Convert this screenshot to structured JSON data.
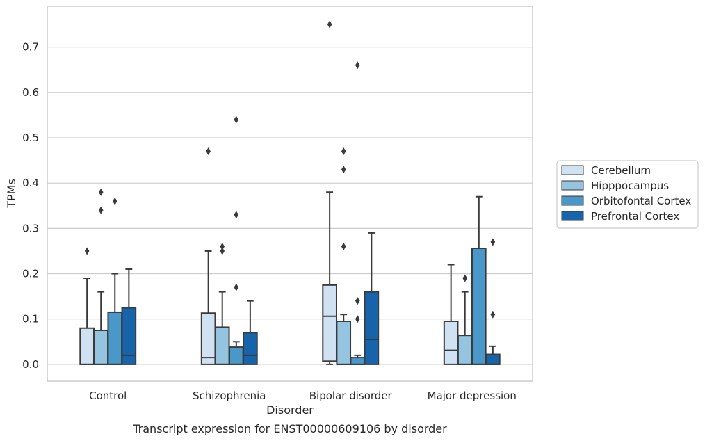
{
  "chart_data": {
    "type": "box",
    "caption": "Transcript expression for ENST00000609106 by disorder",
    "xlabel": "Disorder",
    "ylabel": "TPMs",
    "ylim": [
      -0.037,
      0.79
    ],
    "yticks": [
      0.0,
      0.1,
      0.2,
      0.3,
      0.4,
      0.5,
      0.6,
      0.7
    ],
    "ytick_labels": [
      "0.0",
      "0.1",
      "0.2",
      "0.3",
      "0.4",
      "0.5",
      "0.6",
      "0.7"
    ],
    "grid": "horizontal",
    "legend_position": "right",
    "categories": [
      "Control",
      "Schizophrenia",
      "Bipolar disorder",
      "Major depression"
    ],
    "series": [
      {
        "name": "Cerebellum",
        "color": "#d0e1f2",
        "boxes": [
          {
            "whislo": 0.0,
            "q1": 0.0,
            "med": 0.0,
            "q3": 0.08,
            "whishi": 0.19,
            "fliers": [
              0.25
            ]
          },
          {
            "whislo": 0.0,
            "q1": 0.0,
            "med": 0.015,
            "q3": 0.113,
            "whishi": 0.25,
            "fliers": [
              0.47
            ]
          },
          {
            "whislo": 0.0,
            "q1": 0.007,
            "med": 0.106,
            "q3": 0.175,
            "whishi": 0.38,
            "fliers": [
              0.75
            ]
          },
          {
            "whislo": 0.0,
            "q1": 0.0,
            "med": 0.031,
            "q3": 0.095,
            "whishi": 0.22,
            "fliers": []
          }
        ]
      },
      {
        "name": "Hipppocampus",
        "color": "#94c4df",
        "boxes": [
          {
            "whislo": 0.0,
            "q1": 0.0,
            "med": 0.0,
            "q3": 0.075,
            "whishi": 0.16,
            "fliers": [
              0.34,
              0.38
            ]
          },
          {
            "whislo": 0.0,
            "q1": 0.0,
            "med": 0.0,
            "q3": 0.082,
            "whishi": 0.16,
            "fliers": [
              0.25,
              0.26
            ]
          },
          {
            "whislo": 0.0,
            "q1": 0.0,
            "med": 0.0,
            "q3": 0.095,
            "whishi": 0.11,
            "fliers": [
              0.26,
              0.43,
              0.47
            ]
          },
          {
            "whislo": 0.0,
            "q1": 0.0,
            "med": 0.0,
            "q3": 0.064,
            "whishi": 0.16,
            "fliers": [
              0.19
            ]
          }
        ]
      },
      {
        "name": "Orbitofontal Cortex",
        "color": "#4a98c9",
        "boxes": [
          {
            "whislo": 0.0,
            "q1": 0.0,
            "med": 0.0,
            "q3": 0.115,
            "whishi": 0.2,
            "fliers": [
              0.36
            ]
          },
          {
            "whislo": 0.0,
            "q1": 0.0,
            "med": 0.0,
            "q3": 0.038,
            "whishi": 0.05,
            "fliers": [
              0.17,
              0.33,
              0.54
            ]
          },
          {
            "whislo": 0.0,
            "q1": 0.0,
            "med": 0.0,
            "q3": 0.015,
            "whishi": 0.02,
            "fliers": [
              0.1,
              0.14,
              0.66
            ]
          },
          {
            "whislo": 0.0,
            "q1": 0.0,
            "med": 0.0,
            "q3": 0.256,
            "whishi": 0.37,
            "fliers": []
          }
        ]
      },
      {
        "name": "Prefrontal Cortex",
        "color": "#1764ab",
        "boxes": [
          {
            "whislo": 0.0,
            "q1": 0.0,
            "med": 0.02,
            "q3": 0.125,
            "whishi": 0.21,
            "fliers": []
          },
          {
            "whislo": 0.0,
            "q1": 0.0,
            "med": 0.02,
            "q3": 0.07,
            "whishi": 0.14,
            "fliers": []
          },
          {
            "whislo": 0.0,
            "q1": 0.0,
            "med": 0.055,
            "q3": 0.16,
            "whishi": 0.29,
            "fliers": []
          },
          {
            "whislo": 0.0,
            "q1": 0.0,
            "med": 0.0,
            "q3": 0.022,
            "whishi": 0.04,
            "fliers": [
              0.11,
              0.27
            ]
          }
        ]
      }
    ]
  }
}
